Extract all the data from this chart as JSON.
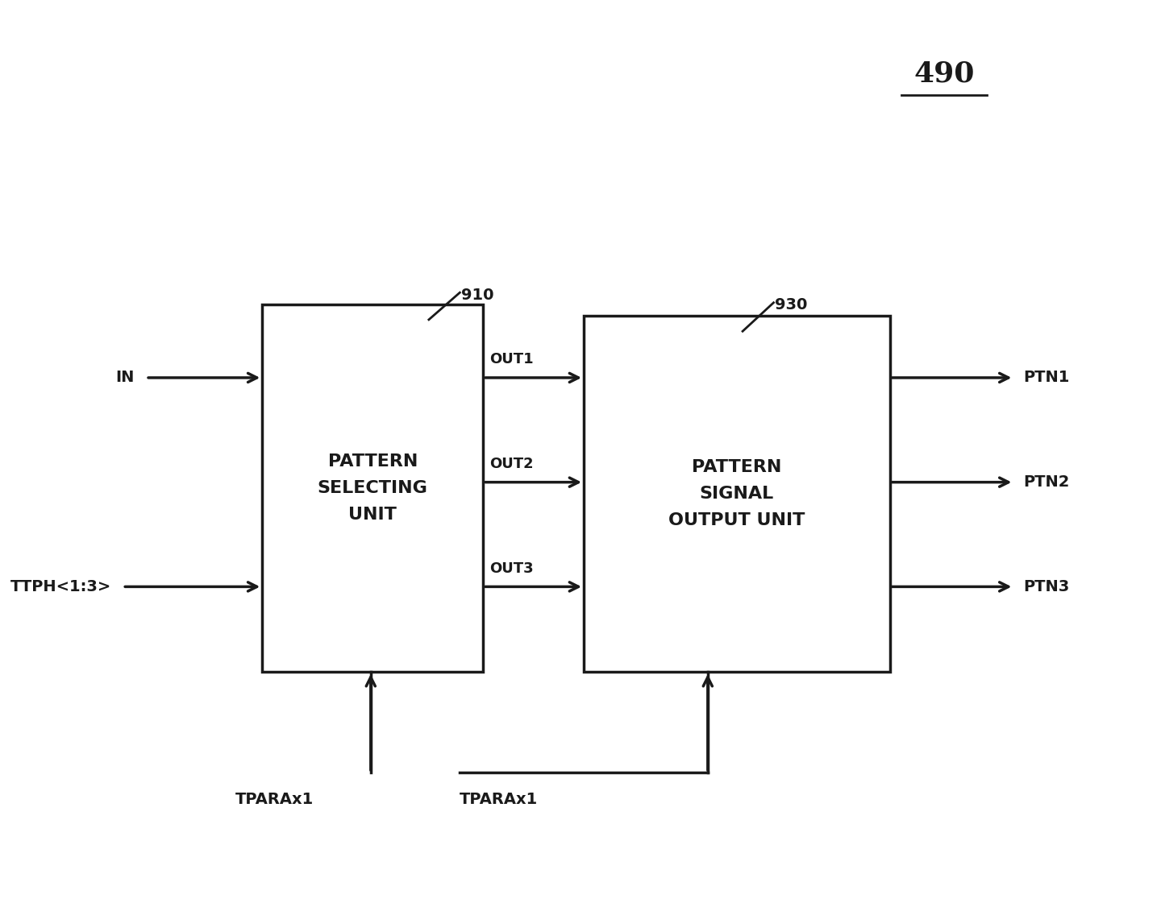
{
  "fig_label": "490",
  "box1_label": "PATTERN\nSELECTING\nUNIT",
  "box1_ref": "910",
  "box2_label": "PATTERN\nSIGNAL\nOUTPUT UNIT",
  "box2_ref": "930",
  "input_left_top": "IN",
  "input_left_bottom": "TTPH<1:3>",
  "input_bottom_left": "TPARAx1",
  "input_bottom_right": "TPARAx1",
  "out_labels": [
    "OUT1",
    "OUT2",
    "OUT3"
  ],
  "ptn_labels": [
    "PTN1",
    "PTN2",
    "PTN3"
  ],
  "bg_color": "#ffffff",
  "box_edge_color": "#1a1a1a",
  "text_color": "#1a1a1a",
  "arrow_color": "#1a1a1a",
  "line_width": 2.5,
  "font_size_box": 16,
  "font_size_label": 14,
  "font_size_ref": 14,
  "font_size_fignum": 26
}
